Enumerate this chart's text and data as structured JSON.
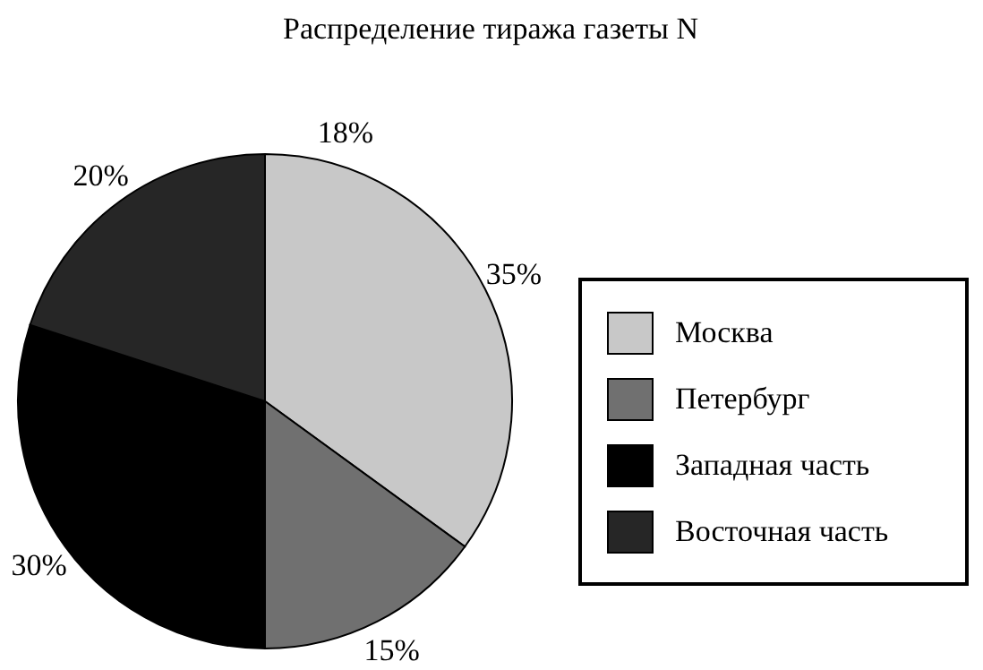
{
  "chart_data": {
    "type": "pie",
    "title": "Распределение тиража газеты N",
    "categories": [
      "Москва",
      "Петербург",
      "Западная часть",
      "Восточная часть"
    ],
    "values": [
      35,
      15,
      30,
      20
    ],
    "colors": [
      "#c8c8c8",
      "#707070",
      "#000000",
      "#262626"
    ],
    "value_labels": [
      "35%",
      "15%",
      "30%",
      "20%"
    ],
    "annotations": [
      "18%"
    ],
    "legend": "right"
  }
}
